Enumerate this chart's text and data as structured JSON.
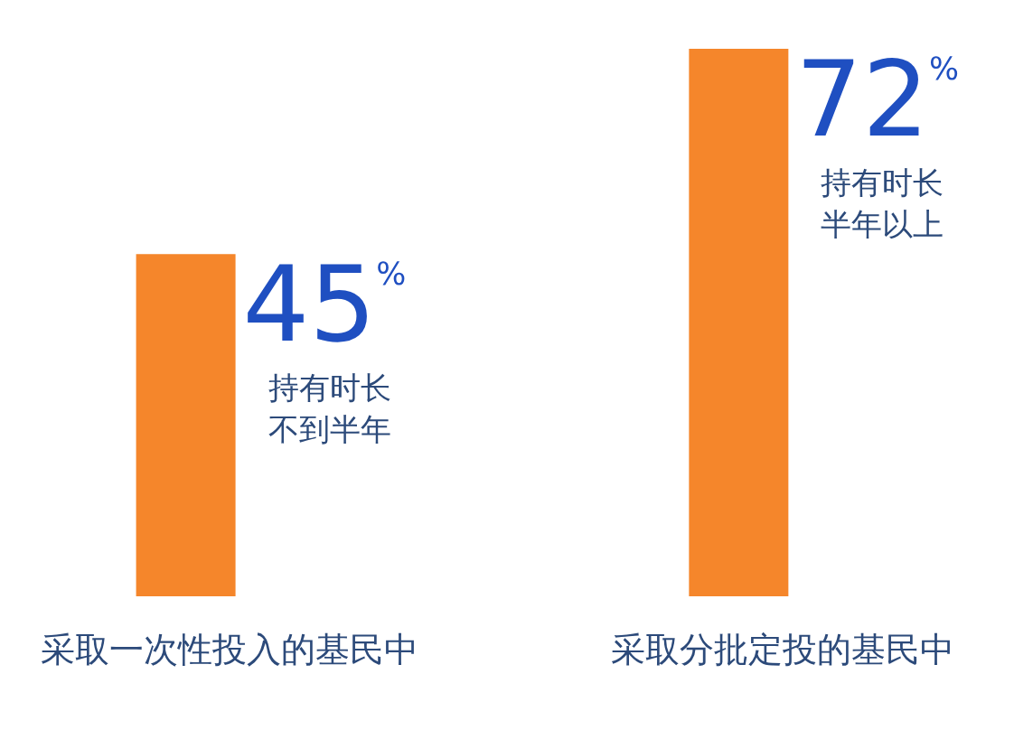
{
  "chart_data": {
    "type": "bar",
    "relative": false,
    "categories": [
      "采取一次性投入的基民中",
      "采取分批定投的基民中"
    ],
    "values": [
      45,
      72
    ],
    "color": "#f5862b",
    "value_labels": [
      "45$^{%}$",
      "72$^{%}$"
    ],
    "annotations": [
      {
        "text": "持有时长不到半年",
        "x": "采取一次性投入的基民中"
      },
      {
        "text": "持有时长半年以上",
        "x": "采取分批定投的基民中"
      }
    ]
  }
}
